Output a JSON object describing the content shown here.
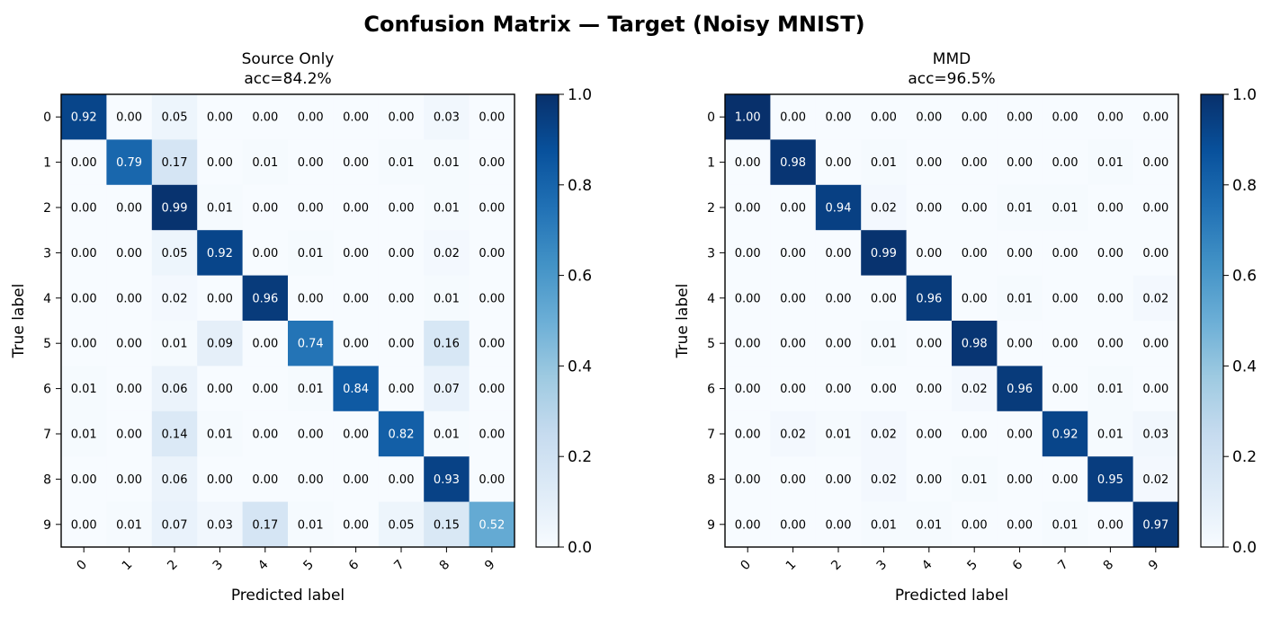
{
  "figure": {
    "suptitle": "Confusion Matrix — Target (Noisy MNIST)"
  },
  "colormap": {
    "name": "Blues",
    "stops": [
      "#f7fbff",
      "#deebf7",
      "#c6dbef",
      "#9ecae1",
      "#6baed6",
      "#4292c6",
      "#2171b5",
      "#08519c",
      "#08306b"
    ],
    "text_light": "#ffffff",
    "text_dark": "#000000",
    "text_threshold": 0.5
  },
  "chart_data": [
    {
      "type": "heatmap",
      "title": "Source Only",
      "subtitle": "acc=84.2%",
      "xlabel": "Predicted label",
      "ylabel": "True label",
      "x_categories": [
        "0",
        "1",
        "2",
        "3",
        "4",
        "5",
        "6",
        "7",
        "8",
        "9"
      ],
      "y_categories": [
        "0",
        "1",
        "2",
        "3",
        "4",
        "5",
        "6",
        "7",
        "8",
        "9"
      ],
      "vmin": 0.0,
      "vmax": 1.0,
      "colorbar_ticks": [
        "0.0",
        "0.2",
        "0.4",
        "0.6",
        "0.8",
        "1.0"
      ],
      "values": [
        [
          0.92,
          0.0,
          0.05,
          0.0,
          0.0,
          0.0,
          0.0,
          0.0,
          0.03,
          0.0
        ],
        [
          0.0,
          0.79,
          0.17,
          0.0,
          0.01,
          0.0,
          0.0,
          0.01,
          0.01,
          0.0
        ],
        [
          0.0,
          0.0,
          0.99,
          0.01,
          0.0,
          0.0,
          0.0,
          0.0,
          0.01,
          0.0
        ],
        [
          0.0,
          0.0,
          0.05,
          0.92,
          0.0,
          0.01,
          0.0,
          0.0,
          0.02,
          0.0
        ],
        [
          0.0,
          0.0,
          0.02,
          0.0,
          0.96,
          0.0,
          0.0,
          0.0,
          0.01,
          0.0
        ],
        [
          0.0,
          0.0,
          0.01,
          0.09,
          0.0,
          0.74,
          0.0,
          0.0,
          0.16,
          0.0
        ],
        [
          0.01,
          0.0,
          0.06,
          0.0,
          0.0,
          0.01,
          0.84,
          0.0,
          0.07,
          0.0
        ],
        [
          0.01,
          0.0,
          0.14,
          0.01,
          0.0,
          0.0,
          0.0,
          0.82,
          0.01,
          0.0
        ],
        [
          0.0,
          0.0,
          0.06,
          0.0,
          0.0,
          0.0,
          0.0,
          0.0,
          0.93,
          0.0
        ],
        [
          0.0,
          0.01,
          0.07,
          0.03,
          0.17,
          0.01,
          0.0,
          0.05,
          0.15,
          0.52
        ]
      ]
    },
    {
      "type": "heatmap",
      "title": "MMD",
      "subtitle": "acc=96.5%",
      "xlabel": "Predicted label",
      "ylabel": "True label",
      "x_categories": [
        "0",
        "1",
        "2",
        "3",
        "4",
        "5",
        "6",
        "7",
        "8",
        "9"
      ],
      "y_categories": [
        "0",
        "1",
        "2",
        "3",
        "4",
        "5",
        "6",
        "7",
        "8",
        "9"
      ],
      "vmin": 0.0,
      "vmax": 1.0,
      "colorbar_ticks": [
        "0.0",
        "0.2",
        "0.4",
        "0.6",
        "0.8",
        "1.0"
      ],
      "values": [
        [
          1.0,
          0.0,
          0.0,
          0.0,
          0.0,
          0.0,
          0.0,
          0.0,
          0.0,
          0.0
        ],
        [
          0.0,
          0.98,
          0.0,
          0.01,
          0.0,
          0.0,
          0.0,
          0.0,
          0.01,
          0.0
        ],
        [
          0.0,
          0.0,
          0.94,
          0.02,
          0.0,
          0.0,
          0.01,
          0.01,
          0.0,
          0.0
        ],
        [
          0.0,
          0.0,
          0.0,
          0.99,
          0.0,
          0.0,
          0.0,
          0.0,
          0.0,
          0.0
        ],
        [
          0.0,
          0.0,
          0.0,
          0.0,
          0.96,
          0.0,
          0.01,
          0.0,
          0.0,
          0.02
        ],
        [
          0.0,
          0.0,
          0.0,
          0.01,
          0.0,
          0.98,
          0.0,
          0.0,
          0.0,
          0.0
        ],
        [
          0.0,
          0.0,
          0.0,
          0.0,
          0.0,
          0.02,
          0.96,
          0.0,
          0.01,
          0.0
        ],
        [
          0.0,
          0.02,
          0.01,
          0.02,
          0.0,
          0.0,
          0.0,
          0.92,
          0.01,
          0.03
        ],
        [
          0.0,
          0.0,
          0.0,
          0.02,
          0.0,
          0.01,
          0.0,
          0.0,
          0.95,
          0.02
        ],
        [
          0.0,
          0.0,
          0.0,
          0.01,
          0.01,
          0.0,
          0.0,
          0.01,
          0.0,
          0.97
        ]
      ]
    }
  ]
}
